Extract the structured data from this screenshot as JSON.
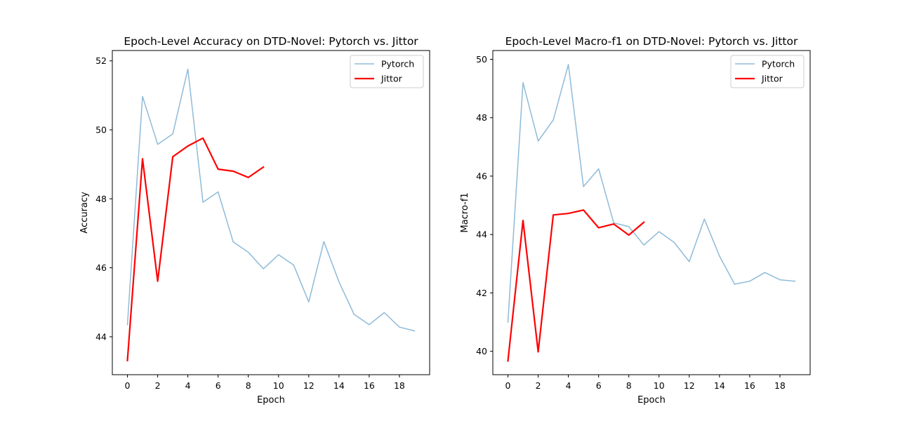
{
  "colors": {
    "pytorch": "#1f77b4",
    "jittor": "#ff0000",
    "axes": "#000000",
    "background": "#ffffff"
  },
  "chart_data": [
    {
      "type": "line",
      "title": "Epoch-Level Accuracy on DTD-Novel: Pytorch vs. Jittor",
      "xlabel": "Epoch",
      "ylabel": "Accuracy",
      "xlim": [
        -1,
        20
      ],
      "ylim": [
        42.9,
        52.3
      ],
      "xticks": [
        0,
        2,
        4,
        6,
        8,
        10,
        12,
        14,
        16,
        18
      ],
      "yticks": [
        44,
        46,
        48,
        50,
        52
      ],
      "grid": false,
      "legend_position": "top-right",
      "series": [
        {
          "name": "Pytorch",
          "color": "#1f77b4",
          "opacity": 0.5,
          "width": 1.5,
          "x": [
            0,
            1,
            2,
            3,
            4,
            5,
            6,
            7,
            8,
            9,
            10,
            11,
            12,
            13,
            14,
            15,
            16,
            17,
            18,
            19
          ],
          "values": [
            44.35,
            50.97,
            49.58,
            49.88,
            51.76,
            47.9,
            48.2,
            46.75,
            46.45,
            45.97,
            46.38,
            46.08,
            45.01,
            46.76,
            45.59,
            44.65,
            44.35,
            44.7,
            44.28,
            44.17
          ]
        },
        {
          "name": "Jittor",
          "color": "#ff0000",
          "opacity": 1,
          "width": 2.2,
          "x": [
            0,
            1,
            2,
            3,
            4,
            5,
            6,
            7,
            8,
            9
          ],
          "values": [
            43.31,
            49.16,
            45.61,
            49.22,
            49.53,
            49.76,
            48.86,
            48.8,
            48.62,
            48.92
          ]
        }
      ]
    },
    {
      "type": "line",
      "title": "Epoch-Level Macro-f1 on DTD-Novel: Pytorch vs. Jittor",
      "xlabel": "Epoch",
      "ylabel": "Macro-f1",
      "xlim": [
        -1,
        20
      ],
      "ylim": [
        39.2,
        50.3
      ],
      "xticks": [
        0,
        2,
        4,
        6,
        8,
        10,
        12,
        14,
        16,
        18
      ],
      "yticks": [
        40,
        42,
        44,
        46,
        48,
        50
      ],
      "grid": false,
      "legend_position": "top-right",
      "series": [
        {
          "name": "Pytorch",
          "color": "#1f77b4",
          "opacity": 0.5,
          "width": 1.5,
          "x": [
            0,
            1,
            2,
            3,
            4,
            5,
            6,
            7,
            8,
            9,
            10,
            11,
            12,
            13,
            14,
            15,
            16,
            17,
            18,
            19
          ],
          "values": [
            41.0,
            49.2,
            47.2,
            47.92,
            49.82,
            45.64,
            46.25,
            44.4,
            44.27,
            43.64,
            44.1,
            43.73,
            43.07,
            44.53,
            43.26,
            42.3,
            42.4,
            42.7,
            42.45,
            42.4
          ]
        },
        {
          "name": "Jittor",
          "color": "#ff0000",
          "opacity": 1,
          "width": 2.2,
          "x": [
            0,
            1,
            2,
            3,
            4,
            5,
            6,
            7,
            8,
            9
          ],
          "values": [
            39.67,
            44.48,
            39.98,
            44.67,
            44.72,
            44.84,
            44.23,
            44.36,
            43.98,
            44.42
          ]
        }
      ]
    }
  ]
}
